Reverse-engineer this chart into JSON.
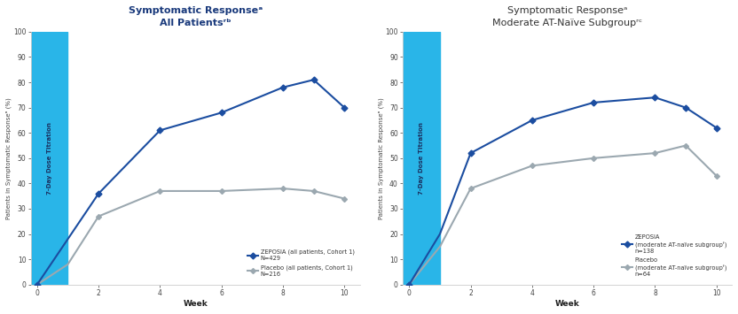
{
  "left_title_line1": "Symptomatic Responseᵃ",
  "left_title_line2": "All Patientsʳᵇ",
  "right_title_line1": "Symptomatic Responseᵃ",
  "right_title_line2": "Moderate AT-Naïve Subgroupʳᶜ",
  "ylabel": "Patients in Symptomatic Responseᵃ (%)",
  "xlabel": "Week",
  "titration_label": "7-Day Dose Titration",
  "left": {
    "zeposia_weeks": [
      0,
      1,
      2,
      4,
      6,
      8,
      9,
      10
    ],
    "zeposia_values": [
      0,
      18,
      36,
      61,
      68,
      78,
      81,
      70
    ],
    "placebo_weeks": [
      0,
      1,
      2,
      4,
      6,
      8,
      9,
      10
    ],
    "placebo_values": [
      0,
      8,
      27,
      37,
      37,
      38,
      37,
      34
    ],
    "zeposia_label": "ZEPOSIA (all patients, Cohort 1)\nN=429",
    "placebo_label": "Placebo (all patients, Cohort 1)\nN=216"
  },
  "right": {
    "zeposia_weeks": [
      0,
      1,
      2,
      4,
      6,
      8,
      9,
      10
    ],
    "zeposia_values": [
      0,
      20,
      52,
      65,
      72,
      74,
      70,
      62
    ],
    "placebo_weeks": [
      0,
      1,
      2,
      4,
      6,
      8,
      9,
      10
    ],
    "placebo_values": [
      0,
      15,
      38,
      47,
      50,
      52,
      55,
      43
    ],
    "zeposia_label": "ZEPOSIA\n(moderate AT-naïve subgroupᶠ)\nn=138",
    "placebo_label": "Placebo\n(moderate AT-naïve subgroupᶠ)\nn=64"
  },
  "mid_blue": "#1b4da0",
  "gray": "#9ba8b0",
  "title_color_left": "#1a3a7c",
  "title_color_right": "#333333",
  "background": "#ffffff",
  "titration_bg": "#29b5e8",
  "titration_text_color": "#1a3060",
  "ylim": [
    0,
    100
  ],
  "xlim": [
    -0.2,
    10.5
  ],
  "xticks": [
    0,
    2,
    4,
    6,
    8,
    10
  ],
  "yticks": [
    0,
    10,
    20,
    30,
    40,
    50,
    60,
    70,
    80,
    90,
    100
  ],
  "titration_end": 1
}
